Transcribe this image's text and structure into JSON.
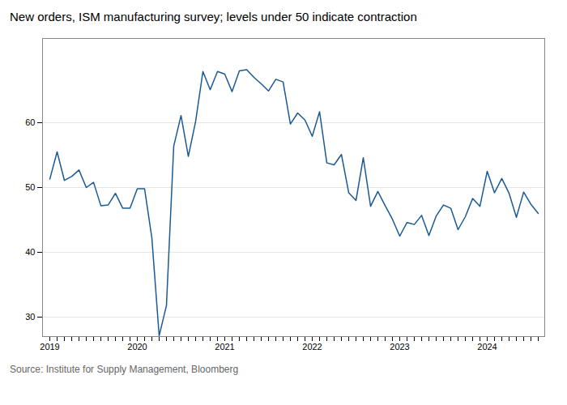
{
  "chart_data": {
    "type": "line",
    "title": "New orders, ISM manufacturing survey; levels under 50 indicate contraction",
    "source": "Source: Institute for Supply Management, Bloomberg",
    "categories": [
      "2019",
      null,
      null,
      null,
      null,
      null,
      null,
      null,
      null,
      null,
      null,
      null,
      "2020",
      null,
      null,
      null,
      null,
      null,
      null,
      null,
      null,
      null,
      null,
      null,
      "2021",
      null,
      null,
      null,
      null,
      null,
      null,
      null,
      null,
      null,
      null,
      null,
      "2022",
      null,
      null,
      null,
      null,
      null,
      null,
      null,
      null,
      null,
      null,
      null,
      "2023",
      null,
      null,
      null,
      null,
      null,
      null,
      null,
      null,
      null,
      null,
      null,
      "2024",
      null,
      null,
      null,
      null,
      null,
      null,
      null
    ],
    "values": [
      51.3,
      55.5,
      51.1,
      51.7,
      52.7,
      50.0,
      50.8,
      47.2,
      47.3,
      49.1,
      46.8,
      46.8,
      49.8,
      49.8,
      42.2,
      27.1,
      31.8,
      56.4,
      61.1,
      54.8,
      60.2,
      67.9,
      65.1,
      67.9,
      67.5,
      64.8,
      68.0,
      68.2,
      67.0,
      66.0,
      64.9,
      66.7,
      66.3,
      59.8,
      61.5,
      60.4,
      57.9,
      61.7,
      53.8,
      53.5,
      55.1,
      49.2,
      48.0,
      54.6,
      47.1,
      49.4,
      47.2,
      45.1,
      42.5,
      44.6,
      44.3,
      45.7,
      42.6,
      45.6,
      47.3,
      46.8,
      43.5,
      45.5,
      48.3,
      47.1,
      52.5,
      49.2,
      51.4,
      49.1,
      45.4,
      49.3,
      47.4,
      46.0
    ],
    "color": "#1a5a96",
    "ylim": [
      27,
      73
    ],
    "yticks": [
      30,
      40,
      50,
      60
    ],
    "grid": true
  }
}
